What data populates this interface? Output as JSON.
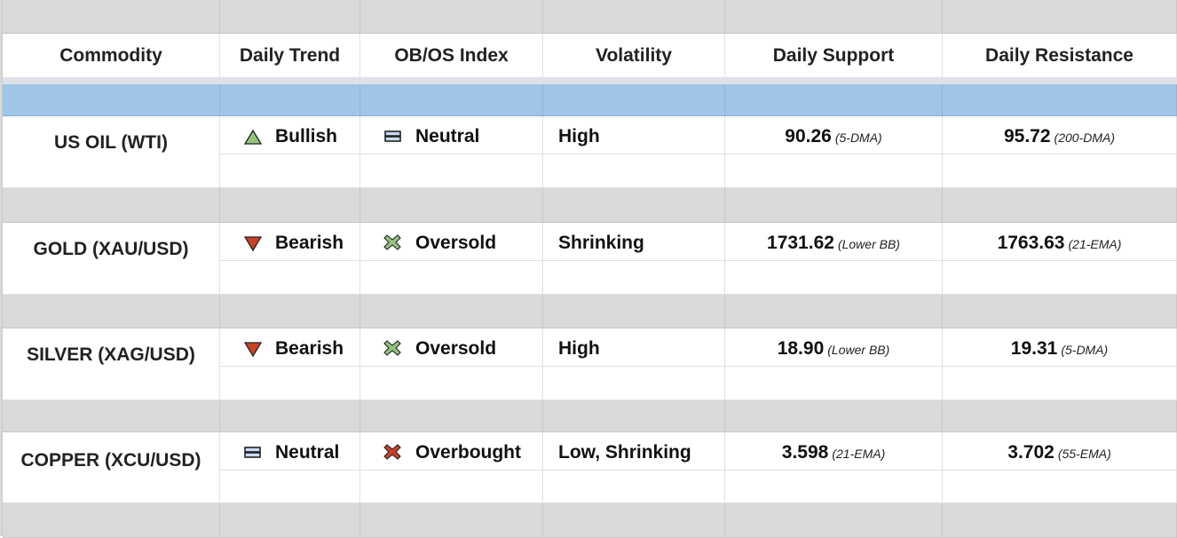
{
  "headers": [
    "Commodity",
    "Daily Trend",
    "OB/OS Index",
    "Volatility",
    "Daily Support",
    "Daily Resistance"
  ],
  "colors": {
    "header_band": "#d9d9d9",
    "blue_band": "#9fc5e8",
    "bullish": "#93c47d",
    "bearish": "#cc4125",
    "oversold": "#93c47d",
    "overbought": "#cc4125",
    "neutral": "#c9daf8"
  },
  "rows": [
    {
      "commodity": "US OIL (WTI)",
      "trend": "Bullish",
      "trend_icon": "triangle-up-icon",
      "obos": "Neutral",
      "obos_icon": "equals-icon",
      "volatility": "High",
      "support": "90.26",
      "support_note": "(5-DMA)",
      "resistance": "95.72",
      "resistance_note": "(200-DMA)"
    },
    {
      "commodity": "GOLD (XAU/USD)",
      "trend": "Bearish",
      "trend_icon": "triangle-down-icon",
      "obos": "Oversold",
      "obos_icon": "cross-green-icon",
      "volatility": "Shrinking",
      "support": "1731.62",
      "support_note": "(Lower BB)",
      "resistance": "1763.63",
      "resistance_note": "(21-EMA)"
    },
    {
      "commodity": "SILVER (XAG/USD)",
      "trend": "Bearish",
      "trend_icon": "triangle-down-icon",
      "obos": "Oversold",
      "obos_icon": "cross-green-icon",
      "volatility": "High",
      "support": "18.90",
      "support_note": "(Lower BB)",
      "resistance": "19.31",
      "resistance_note": "(5-DMA)"
    },
    {
      "commodity": "COPPER (XCU/USD)",
      "trend": "Neutral",
      "trend_icon": "equals-icon",
      "obos": "Overbought",
      "obos_icon": "cross-red-icon",
      "volatility": "Low, Shrinking",
      "support": "3.598",
      "support_note": "(21-EMA)",
      "resistance": "3.702",
      "resistance_note": "(55-EMA)"
    }
  ]
}
